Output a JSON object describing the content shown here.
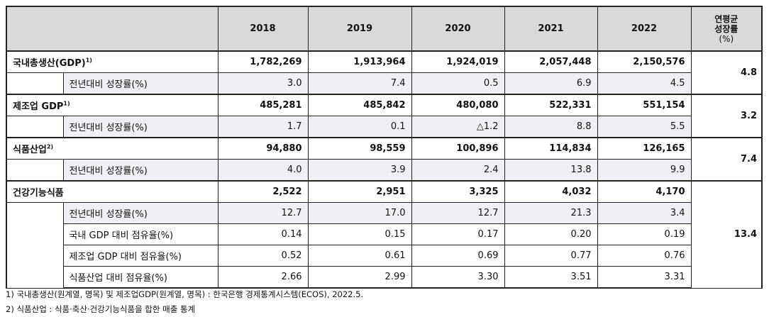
{
  "header": {
    "years": [
      "2018",
      "2019",
      "2020",
      "2021",
      "2022"
    ],
    "avg_label": [
      "연평균",
      "성장률",
      "(%)"
    ]
  },
  "groups": [
    {
      "label": "국내총생산(GDP)",
      "sup": "1)",
      "values": [
        "1,782,269",
        "1,913,964",
        "1,924,019",
        "2,057,448",
        "2,150,576"
      ],
      "avg": "4.8",
      "subs": [
        {
          "label": "전년대비 성장률(%)",
          "values": [
            "3.0",
            "7.4",
            "0.5",
            "6.9",
            "4.5"
          ]
        }
      ]
    },
    {
      "label": "제조업 GDP",
      "sup": "1)",
      "values": [
        "485,281",
        "485,842",
        "480,080",
        "522,331",
        "551,154"
      ],
      "avg": "3.2",
      "subs": [
        {
          "label": "전년대비 성장률(%)",
          "values": [
            "1.7",
            "0.1",
            "△1.2",
            "8.8",
            "5.5"
          ]
        }
      ]
    },
    {
      "label": "식품산업",
      "sup": "2)",
      "values": [
        "94,880",
        "98,559",
        "100,896",
        "114,834",
        "126,165"
      ],
      "avg": "7.4",
      "subs": [
        {
          "label": "전년대비 성장률(%)",
          "values": [
            "4.0",
            "3.9",
            "2.4",
            "13.8",
            "9.9"
          ]
        }
      ]
    },
    {
      "label": "건강기능식품",
      "sup": "",
      "values": [
        "2,522",
        "2,951",
        "3,325",
        "4,032",
        "4,170"
      ],
      "avg": "13.4",
      "subs": [
        {
          "label": "전년대비 성장률(%)",
          "values": [
            "12.7",
            "17.0",
            "12.7",
            "21.3",
            "3.4"
          ]
        },
        {
          "label": "국내 GDP 대비 점유율(%)",
          "values": [
            "0.14",
            "0.15",
            "0.17",
            "0.20",
            "0.19"
          ]
        },
        {
          "label": "제조업 GDP 대비 점유율(%)",
          "values": [
            "0.52",
            "0.61",
            "0.69",
            "0.77",
            "0.76"
          ]
        },
        {
          "label": "식품산업 대비 점유율(%)",
          "values": [
            "2.66",
            "2.99",
            "3.30",
            "3.51",
            "3.31"
          ]
        }
      ]
    }
  ],
  "footnotes": [
    "1) 국내총생산(원계열, 명목) 및 제조업GDP(원계열, 명목) : 한국은행 경제통계시스템(ECOS), 2022.5.",
    "2) 식품산업 : 식품·축산·건강기능식품을 합한 매출 통계"
  ]
}
